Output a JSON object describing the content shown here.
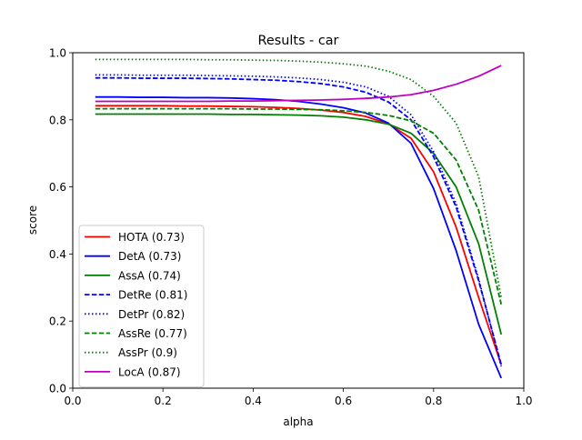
{
  "chart_data": {
    "type": "line",
    "title": "Results - car",
    "xlabel": "alpha",
    "ylabel": "score",
    "xlim": [
      0.0,
      1.0
    ],
    "ylim": [
      0.0,
      1.0
    ],
    "xticks": [
      "0.0",
      "0.2",
      "0.4",
      "0.6",
      "0.8",
      "1.0"
    ],
    "yticks": [
      "0.0",
      "0.2",
      "0.4",
      "0.6",
      "0.8",
      "1.0"
    ],
    "grid": false,
    "legend_position": "lower-left",
    "x": [
      0.05,
      0.1,
      0.15,
      0.2,
      0.25,
      0.3,
      0.35,
      0.4,
      0.45,
      0.5,
      0.55,
      0.6,
      0.65,
      0.7,
      0.75,
      0.8,
      0.85,
      0.9,
      0.95
    ],
    "series": [
      {
        "name": "HOTA (0.73)",
        "color": "#ff0000",
        "style": "solid",
        "values": [
          0.842,
          0.842,
          0.842,
          0.842,
          0.841,
          0.841,
          0.84,
          0.839,
          0.837,
          0.834,
          0.829,
          0.822,
          0.81,
          0.788,
          0.745,
          0.645,
          0.48,
          0.27,
          0.07
        ]
      },
      {
        "name": "DetA (0.73)",
        "color": "#0000ff",
        "style": "solid",
        "values": [
          0.868,
          0.868,
          0.867,
          0.867,
          0.866,
          0.866,
          0.865,
          0.863,
          0.86,
          0.855,
          0.847,
          0.836,
          0.82,
          0.79,
          0.73,
          0.595,
          0.41,
          0.19,
          0.03
        ]
      },
      {
        "name": "AssA (0.74)",
        "color": "#008000",
        "style": "solid",
        "values": [
          0.817,
          0.817,
          0.817,
          0.817,
          0.817,
          0.817,
          0.816,
          0.816,
          0.815,
          0.814,
          0.812,
          0.808,
          0.8,
          0.787,
          0.76,
          0.7,
          0.6,
          0.43,
          0.16
        ]
      },
      {
        "name": "DetRe (0.81)",
        "color": "#0000ff",
        "style": "dashed",
        "values": [
          0.925,
          0.925,
          0.924,
          0.924,
          0.924,
          0.923,
          0.922,
          0.92,
          0.918,
          0.914,
          0.908,
          0.898,
          0.882,
          0.853,
          0.8,
          0.69,
          0.54,
          0.32,
          0.07
        ]
      },
      {
        "name": "DetPr (0.82)",
        "color": "#0000ff",
        "style": "dotted",
        "values": [
          0.934,
          0.934,
          0.933,
          0.933,
          0.933,
          0.932,
          0.931,
          0.93,
          0.928,
          0.925,
          0.92,
          0.912,
          0.898,
          0.87,
          0.815,
          0.705,
          0.55,
          0.325,
          0.065
        ]
      },
      {
        "name": "AssRe (0.77)",
        "color": "#008000",
        "style": "dashed",
        "values": [
          0.833,
          0.833,
          0.833,
          0.833,
          0.833,
          0.833,
          0.833,
          0.832,
          0.832,
          0.831,
          0.83,
          0.827,
          0.822,
          0.813,
          0.797,
          0.76,
          0.68,
          0.53,
          0.25
        ]
      },
      {
        "name": "AssPr (0.9)",
        "color": "#008000",
        "style": "dotted",
        "values": [
          0.98,
          0.98,
          0.98,
          0.98,
          0.98,
          0.979,
          0.979,
          0.978,
          0.977,
          0.975,
          0.972,
          0.967,
          0.96,
          0.945,
          0.92,
          0.87,
          0.79,
          0.63,
          0.27
        ]
      },
      {
        "name": "LocA (0.87)",
        "color": "#bf00bf",
        "style": "solid",
        "values": [
          0.855,
          0.855,
          0.855,
          0.855,
          0.855,
          0.855,
          0.856,
          0.856,
          0.857,
          0.858,
          0.859,
          0.861,
          0.864,
          0.868,
          0.875,
          0.888,
          0.906,
          0.93,
          0.962
        ]
      }
    ]
  }
}
